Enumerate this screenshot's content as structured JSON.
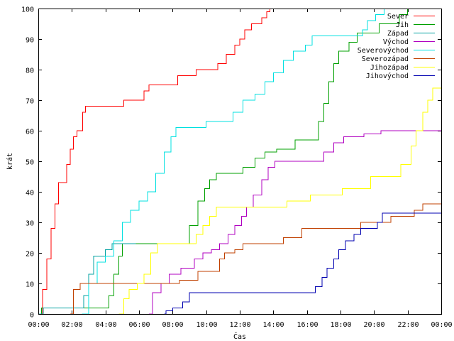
{
  "chart_data": {
    "type": "line",
    "xlabel": "Čas",
    "ylabel": "krát",
    "xlim": [
      0,
      24
    ],
    "ylim": [
      0,
      100
    ],
    "x_ticks": [
      0,
      2,
      4,
      6,
      8,
      10,
      12,
      14,
      16,
      18,
      20,
      22,
      24
    ],
    "x_tick_labels": [
      "00:00",
      "02:00",
      "04:00",
      "06:00",
      "08:00",
      "10:00",
      "12:00",
      "14:00",
      "16:00",
      "18:00",
      "20:00",
      "22:00",
      "00:00"
    ],
    "y_ticks": [
      0,
      10,
      20,
      30,
      40,
      50,
      60,
      70,
      80,
      90,
      100
    ],
    "y_tick_labels": [
      "0",
      "10",
      "20",
      "30",
      "40",
      "50",
      "60",
      "70",
      "80",
      "90",
      "100"
    ],
    "grid": false,
    "legend_position": "top-right",
    "series": [
      {
        "name": "Sever",
        "color": "#ff0000",
        "points": [
          [
            0,
            0
          ],
          [
            0.25,
            8
          ],
          [
            0.5,
            18
          ],
          [
            0.75,
            28
          ],
          [
            1.0,
            36
          ],
          [
            1.2,
            43
          ],
          [
            1.5,
            43
          ],
          [
            1.7,
            49
          ],
          [
            1.9,
            54
          ],
          [
            2.1,
            58
          ],
          [
            2.3,
            60
          ],
          [
            2.55,
            60
          ],
          [
            2.65,
            66
          ],
          [
            2.8,
            68
          ],
          [
            4.2,
            68
          ],
          [
            5.1,
            70
          ],
          [
            6.1,
            70
          ],
          [
            6.3,
            73
          ],
          [
            6.6,
            75
          ],
          [
            8.0,
            75
          ],
          [
            8.3,
            78
          ],
          [
            9.2,
            78
          ],
          [
            9.4,
            80
          ],
          [
            10.3,
            80
          ],
          [
            10.7,
            82
          ],
          [
            11.2,
            85
          ],
          [
            11.7,
            88
          ],
          [
            12.0,
            90
          ],
          [
            12.3,
            93
          ],
          [
            12.7,
            95
          ],
          [
            13.3,
            97
          ],
          [
            13.6,
            99
          ],
          [
            13.8,
            100
          ]
        ]
      },
      {
        "name": "Jih",
        "color": "#00a000",
        "points": [
          [
            0,
            0
          ],
          [
            0.2,
            2
          ],
          [
            2.1,
            2
          ],
          [
            4.0,
            2
          ],
          [
            4.2,
            6
          ],
          [
            4.5,
            13
          ],
          [
            4.8,
            19
          ],
          [
            5.0,
            23
          ],
          [
            6.1,
            23
          ],
          [
            8.6,
            23
          ],
          [
            9.0,
            29
          ],
          [
            9.5,
            37
          ],
          [
            9.9,
            41
          ],
          [
            10.2,
            44
          ],
          [
            10.6,
            46
          ],
          [
            11.6,
            46
          ],
          [
            12.2,
            48
          ],
          [
            12.9,
            51
          ],
          [
            13.5,
            53
          ],
          [
            14.2,
            54
          ],
          [
            15.0,
            54
          ],
          [
            15.3,
            57
          ],
          [
            16.5,
            57
          ],
          [
            16.7,
            63
          ],
          [
            17.0,
            69
          ],
          [
            17.3,
            76
          ],
          [
            17.6,
            82
          ],
          [
            17.9,
            86
          ],
          [
            18.5,
            89
          ],
          [
            19.0,
            92
          ],
          [
            20.1,
            92
          ],
          [
            20.3,
            95
          ],
          [
            21.0,
            95
          ],
          [
            21.5,
            98
          ],
          [
            22.0,
            100
          ]
        ]
      },
      {
        "name": "Západ",
        "color": "#00a0a0",
        "points": [
          [
            0,
            0
          ],
          [
            0.3,
            2
          ],
          [
            2.5,
            2
          ],
          [
            2.7,
            6
          ],
          [
            3.0,
            13
          ],
          [
            3.3,
            19
          ],
          [
            3.8,
            19
          ],
          [
            4.0,
            21
          ],
          [
            4.4,
            23
          ],
          [
            5.0,
            23
          ],
          [
            5.8,
            23
          ]
        ]
      },
      {
        "name": "Východ",
        "color": "#b000c0",
        "points": [
          [
            6.6,
            0
          ],
          [
            6.8,
            7
          ],
          [
            7.3,
            10
          ],
          [
            7.8,
            13
          ],
          [
            8.5,
            15
          ],
          [
            9.3,
            18
          ],
          [
            9.8,
            20
          ],
          [
            10.3,
            21
          ],
          [
            10.8,
            23
          ],
          [
            11.3,
            26
          ],
          [
            11.7,
            29
          ],
          [
            12.1,
            32
          ],
          [
            12.4,
            35
          ],
          [
            12.8,
            39
          ],
          [
            13.3,
            44
          ],
          [
            13.7,
            48
          ],
          [
            14.1,
            50
          ],
          [
            15.0,
            50
          ],
          [
            16.2,
            50
          ],
          [
            17.0,
            53
          ],
          [
            17.6,
            56
          ],
          [
            18.2,
            58
          ],
          [
            19.0,
            58
          ],
          [
            19.4,
            59
          ],
          [
            20.4,
            60
          ],
          [
            24.0,
            60
          ]
        ]
      },
      {
        "name": "Severovýchod",
        "color": "#00e0e0",
        "points": [
          [
            2.6,
            0
          ],
          [
            3.0,
            10
          ],
          [
            3.5,
            17
          ],
          [
            4.0,
            19
          ],
          [
            4.5,
            24
          ],
          [
            5.0,
            30
          ],
          [
            5.5,
            34
          ],
          [
            6.0,
            37
          ],
          [
            6.5,
            40
          ],
          [
            7.0,
            46
          ],
          [
            7.5,
            53
          ],
          [
            7.9,
            58
          ],
          [
            8.2,
            61
          ],
          [
            9.0,
            61
          ],
          [
            10.0,
            63
          ],
          [
            11.0,
            63
          ],
          [
            11.6,
            66
          ],
          [
            12.2,
            70
          ],
          [
            12.9,
            72
          ],
          [
            13.5,
            76
          ],
          [
            14.0,
            79
          ],
          [
            14.6,
            83
          ],
          [
            15.2,
            86
          ],
          [
            15.9,
            88
          ],
          [
            16.3,
            91
          ],
          [
            18.8,
            91
          ],
          [
            19.3,
            93
          ],
          [
            19.6,
            96
          ],
          [
            20.1,
            98
          ],
          [
            20.6,
            100
          ]
        ]
      },
      {
        "name": "Severozápad",
        "color": "#c04000",
        "points": [
          [
            1.9,
            0
          ],
          [
            2.1,
            8
          ],
          [
            2.5,
            10
          ],
          [
            4.0,
            10
          ],
          [
            8.2,
            10
          ],
          [
            8.4,
            11
          ],
          [
            9.2,
            11
          ],
          [
            9.5,
            14
          ],
          [
            10.4,
            14
          ],
          [
            10.8,
            18
          ],
          [
            11.1,
            20
          ],
          [
            11.7,
            21
          ],
          [
            12.2,
            23
          ],
          [
            13.5,
            23
          ],
          [
            14.6,
            25
          ],
          [
            15.7,
            28
          ],
          [
            17.0,
            28
          ],
          [
            18.8,
            28
          ],
          [
            19.2,
            30
          ],
          [
            20.5,
            30
          ],
          [
            21.0,
            32
          ],
          [
            22.0,
            32
          ],
          [
            22.4,
            34
          ],
          [
            22.9,
            36
          ],
          [
            24.0,
            36
          ]
        ]
      },
      {
        "name": "Jihozápad",
        "color": "#ffff00",
        "points": [
          [
            4.8,
            0
          ],
          [
            5.1,
            5
          ],
          [
            5.4,
            8
          ],
          [
            5.9,
            10
          ],
          [
            6.3,
            13
          ],
          [
            6.7,
            20
          ],
          [
            7.1,
            23
          ],
          [
            9.0,
            23
          ],
          [
            9.4,
            26
          ],
          [
            9.8,
            29
          ],
          [
            10.2,
            32
          ],
          [
            10.6,
            35
          ],
          [
            11.6,
            35
          ],
          [
            12.2,
            35
          ],
          [
            14.8,
            37
          ],
          [
            16.2,
            39
          ],
          [
            17.6,
            39
          ],
          [
            18.1,
            41
          ],
          [
            19.2,
            41
          ],
          [
            19.8,
            45
          ],
          [
            21.0,
            45
          ],
          [
            21.6,
            49
          ],
          [
            22.2,
            55
          ],
          [
            22.5,
            60
          ],
          [
            22.9,
            66
          ],
          [
            23.2,
            70
          ],
          [
            23.5,
            74
          ],
          [
            24.0,
            74
          ]
        ]
      },
      {
        "name": "Jihovýchod",
        "color": "#0000b0",
        "points": [
          [
            7.5,
            0
          ],
          [
            7.6,
            1
          ],
          [
            8.0,
            2
          ],
          [
            8.6,
            4
          ],
          [
            9.0,
            7
          ],
          [
            16.1,
            7
          ],
          [
            16.5,
            9
          ],
          [
            16.9,
            12
          ],
          [
            17.2,
            15
          ],
          [
            17.6,
            18
          ],
          [
            17.9,
            21
          ],
          [
            18.3,
            24
          ],
          [
            18.8,
            26
          ],
          [
            19.2,
            28
          ],
          [
            19.8,
            28
          ],
          [
            20.2,
            30
          ],
          [
            20.5,
            33
          ],
          [
            24.0,
            33
          ]
        ]
      }
    ]
  }
}
